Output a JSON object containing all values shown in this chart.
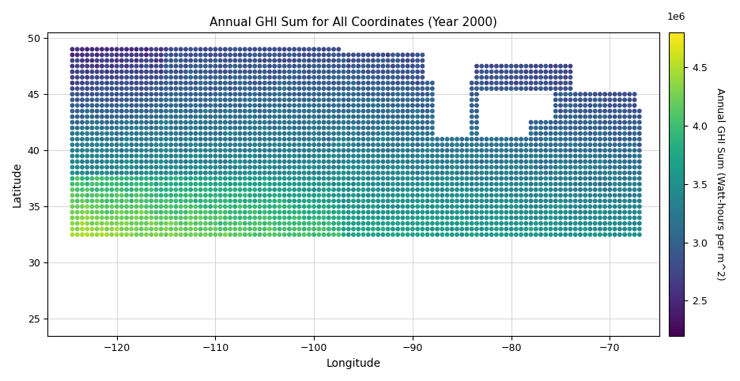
{
  "title": "Annual GHI Sum for All Coordinates (Year 2000)",
  "xlabel": "Longitude",
  "ylabel": "Latitude",
  "colorbar_label": "Annual GHI Sum (Watt-hours per m^2)",
  "colormap": "viridis",
  "vmin": 2200000,
  "vmax": 4800000,
  "colorbar_ticks": [
    2500000,
    3000000,
    3500000,
    4000000,
    4500000
  ],
  "colorbar_tick_labels": [
    "2.5",
    "3.0",
    "3.5",
    "4.0",
    "4.5"
  ],
  "xlim": [
    -127,
    -65
  ],
  "ylim": [
    23.5,
    50.5
  ],
  "xticks": [
    -120,
    -110,
    -100,
    -90,
    -80,
    -70
  ],
  "yticks": [
    25,
    30,
    35,
    40,
    45,
    50
  ],
  "dot_size": 18,
  "grid_color": "#cccccc",
  "grid_alpha": 0.8,
  "seed": 42
}
